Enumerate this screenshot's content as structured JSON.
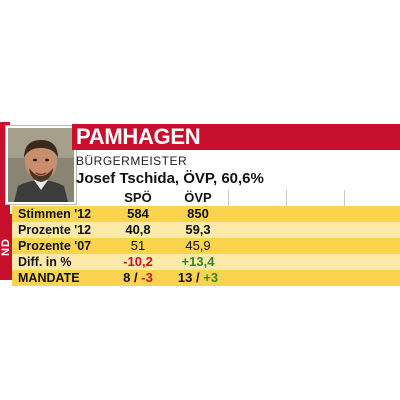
{
  "region_tab": "ND",
  "municipality": "PAMHAGEN",
  "role": "BÜRGERMEISTER",
  "mayor": "Josef Tschida, ÖVP, 60,6%",
  "table": {
    "headers": [
      "SPÖ",
      "ÖVP"
    ],
    "rows": [
      {
        "label": "Stimmen '12",
        "spo": "584",
        "ovp": "850"
      },
      {
        "label": "Prozente '12",
        "spo": "40,8",
        "ovp": "59,3"
      },
      {
        "label": "Prozente '07",
        "spo": "51",
        "ovp": "45,9"
      },
      {
        "label": "Diff. in %",
        "spo": "-10,2",
        "ovp": "+13,4"
      },
      {
        "label": "MANDATE",
        "spo_a": "8",
        "spo_sep": "/",
        "spo_b": "-3",
        "ovp_a": "13",
        "ovp_sep": "/",
        "ovp_b": "+3"
      }
    ]
  },
  "colors": {
    "brand_red": "#c8102e",
    "row_yellow": "#fbd44f",
    "row_pale": "#fde9a8",
    "positive": "#2a8a2a"
  }
}
